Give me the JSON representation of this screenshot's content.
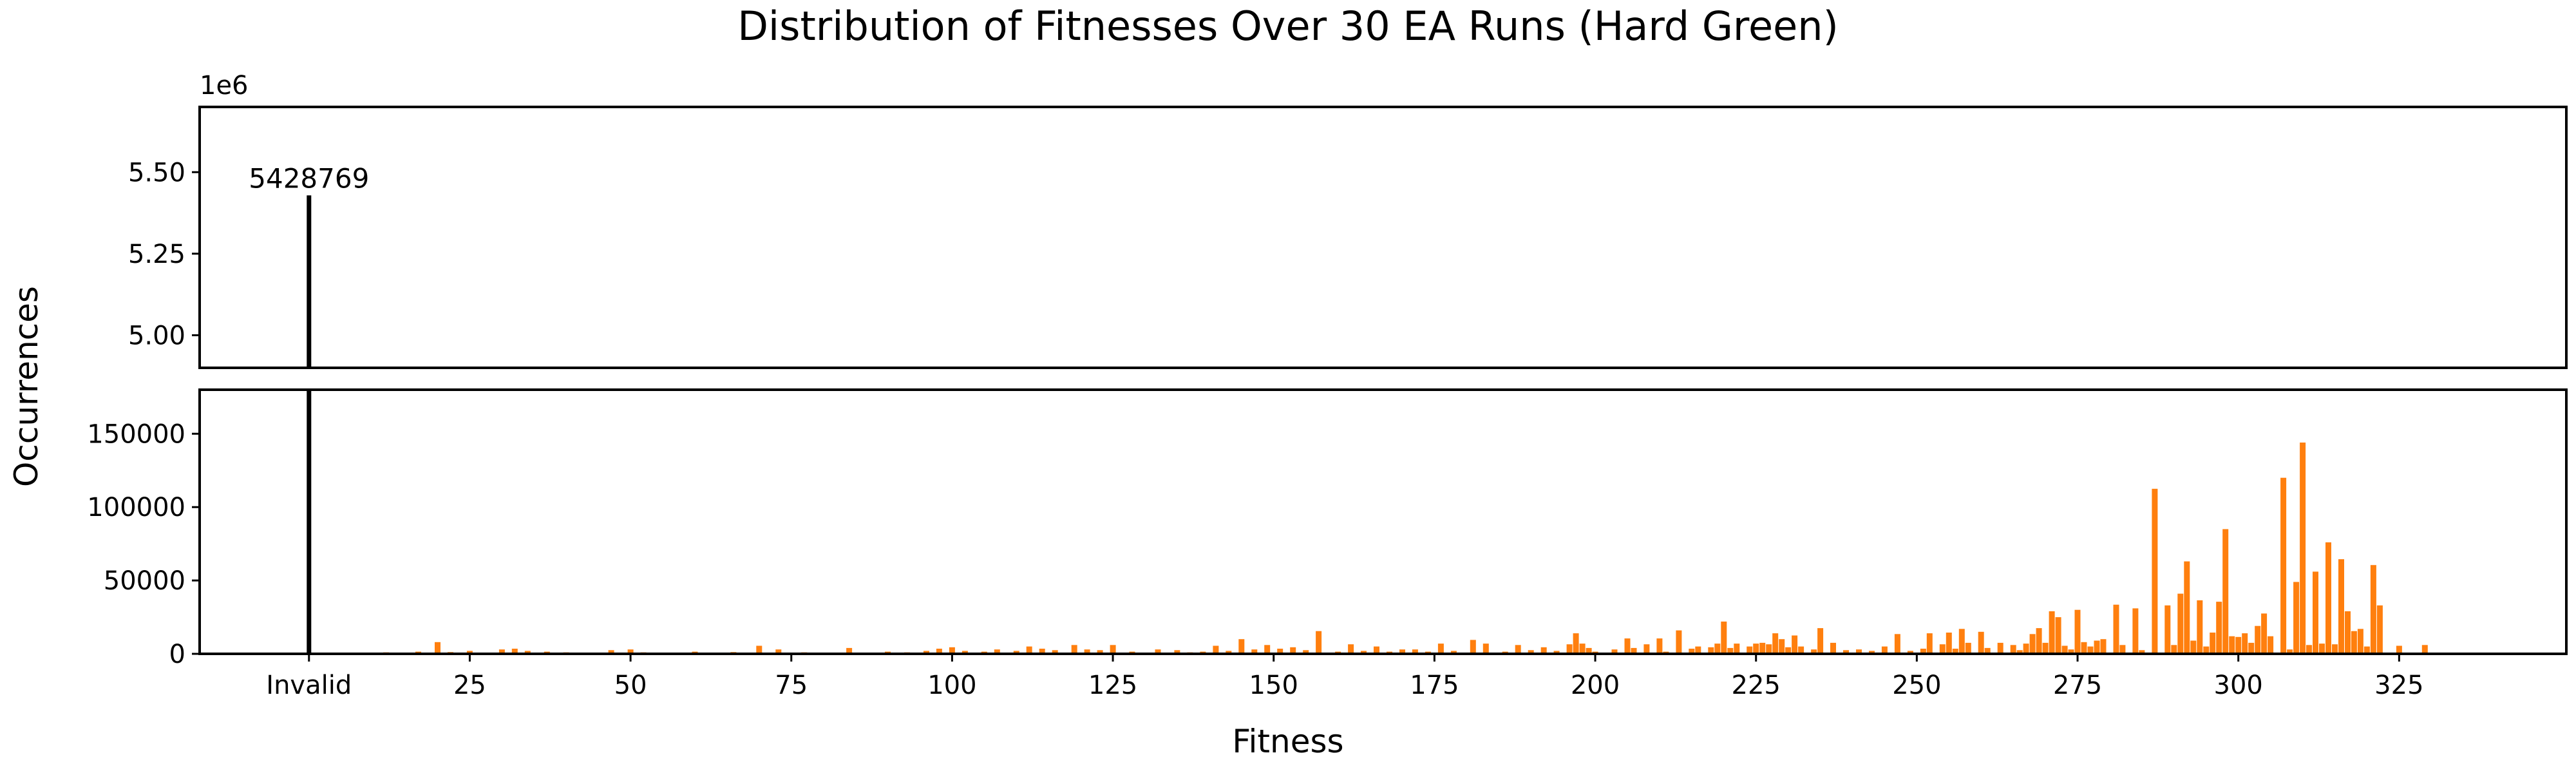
{
  "chart_data": {
    "type": "bar",
    "title": "Distribution of Fitnesses Over 30 EA Runs (Hard Green)",
    "xlabel": "Fitness",
    "ylabel": "Occurrences",
    "xlim": [
      -17,
      351
    ],
    "invalid_bar": {
      "label": "Invalid",
      "x": 0,
      "value": 5428769,
      "annotation": "5428769",
      "color": "#000000"
    },
    "x_ticks": [
      {
        "value": 0,
        "label": "Invalid"
      },
      {
        "value": 25,
        "label": "25"
      },
      {
        "value": 50,
        "label": "50"
      },
      {
        "value": 75,
        "label": "75"
      },
      {
        "value": 100,
        "label": "100"
      },
      {
        "value": 125,
        "label": "125"
      },
      {
        "value": 150,
        "label": "150"
      },
      {
        "value": 175,
        "label": "175"
      },
      {
        "value": 200,
        "label": "200"
      },
      {
        "value": 225,
        "label": "225"
      },
      {
        "value": 250,
        "label": "250"
      },
      {
        "value": 275,
        "label": "275"
      },
      {
        "value": 300,
        "label": "300"
      },
      {
        "value": 325,
        "label": "325"
      }
    ],
    "upper_axis": {
      "ylim": [
        4.9,
        5.7
      ],
      "offset_label": "1e6",
      "y_ticks": [
        {
          "value": 5.0,
          "label": "5.00"
        },
        {
          "value": 5.25,
          "label": "5.25"
        },
        {
          "value": 5.5,
          "label": "5.50"
        }
      ]
    },
    "lower_axis": {
      "ylim": [
        0,
        180000
      ],
      "y_ticks": [
        {
          "value": 0,
          "label": "0"
        },
        {
          "value": 50000,
          "label": "50000"
        },
        {
          "value": 100000,
          "label": "100000"
        },
        {
          "value": 150000,
          "label": "150000"
        }
      ]
    },
    "bar_color": "#ff7f0e",
    "fitness": [
      9,
      12,
      15,
      17,
      20,
      22,
      25,
      27,
      30,
      32,
      34,
      37,
      40,
      43,
      47,
      50,
      52,
      56,
      60,
      63,
      66,
      70,
      73,
      77,
      80,
      84,
      88,
      90,
      93,
      96,
      98,
      100,
      102,
      105,
      107,
      110,
      112,
      114,
      116,
      119,
      121,
      123,
      125,
      128,
      132,
      135,
      137,
      139,
      141,
      143,
      145,
      147,
      149,
      151,
      153,
      155,
      157,
      160,
      162,
      164,
      166,
      168,
      170,
      172,
      174,
      176,
      178,
      181,
      183,
      186,
      188,
      190,
      192,
      194,
      196,
      197,
      198,
      199,
      200,
      203,
      205,
      206,
      208,
      210,
      211,
      213,
      215,
      216,
      218,
      219,
      220,
      221,
      222,
      224,
      225,
      226,
      227,
      228,
      229,
      230,
      231,
      232,
      234,
      235,
      237,
      239,
      241,
      243,
      245,
      247,
      249,
      251,
      252,
      254,
      255,
      256,
      257,
      258,
      260,
      261,
      263,
      265,
      266,
      267,
      268,
      269,
      270,
      271,
      272,
      273,
      274,
      275,
      276,
      277,
      278,
      279,
      281,
      282,
      284,
      285,
      287,
      289,
      290,
      291,
      292,
      293,
      294,
      295,
      296,
      297,
      298,
      299,
      300,
      301,
      302,
      303,
      304,
      305,
      307,
      308,
      309,
      310,
      311,
      312,
      313,
      314,
      315,
      316,
      317,
      318,
      319,
      320,
      321,
      322,
      325,
      329
    ],
    "occurrences": [
      500,
      1000,
      800,
      1500,
      8000,
      1200,
      2000,
      500,
      3000,
      3500,
      2000,
      1500,
      1000,
      800,
      2500,
      3000,
      1000,
      500,
      1500,
      800,
      1200,
      5500,
      3000,
      1000,
      500,
      4000,
      800,
      1500,
      1000,
      2000,
      3500,
      4500,
      2000,
      1500,
      3000,
      2000,
      5000,
      3500,
      2500,
      6000,
      3000,
      2500,
      6000,
      1500,
      3000,
      2500,
      1000,
      1500,
      5500,
      2000,
      10000,
      3000,
      6000,
      3500,
      4500,
      2500,
      15500,
      1500,
      6500,
      2000,
      5000,
      1500,
      3000,
      3000,
      1500,
      7000,
      2000,
      9500,
      7000,
      1500,
      6000,
      2500,
      4500,
      2000,
      6500,
      14000,
      7000,
      4000,
      1500,
      3000,
      10500,
      4000,
      6500,
      10500,
      1500,
      16000,
      3500,
      5000,
      4500,
      7000,
      22000,
      4000,
      7000,
      5000,
      7000,
      7500,
      6500,
      14000,
      10000,
      4500,
      12500,
      5000,
      3000,
      17500,
      7500,
      2500,
      3000,
      2000,
      5000,
      13500,
      2000,
      3500,
      14000,
      6500,
      14500,
      3500,
      17000,
      7500,
      15000,
      4000,
      7500,
      6000,
      2500,
      7000,
      13500,
      17500,
      7500,
      29000,
      25000,
      5500,
      3000,
      30000,
      8000,
      5000,
      9000,
      10000,
      33500,
      6000,
      31000,
      2500,
      112500,
      33000,
      6000,
      41000,
      63000,
      9000,
      36500,
      5000,
      14500,
      35500,
      85000,
      12000,
      11500,
      14000,
      7500,
      19000,
      27500,
      12000,
      120000,
      3000,
      49000,
      144000,
      6000,
      56000,
      7000,
      76000,
      6500,
      64500,
      29000,
      15500,
      17000,
      5000,
      60500,
      33000,
      5500,
      6000
    ]
  }
}
